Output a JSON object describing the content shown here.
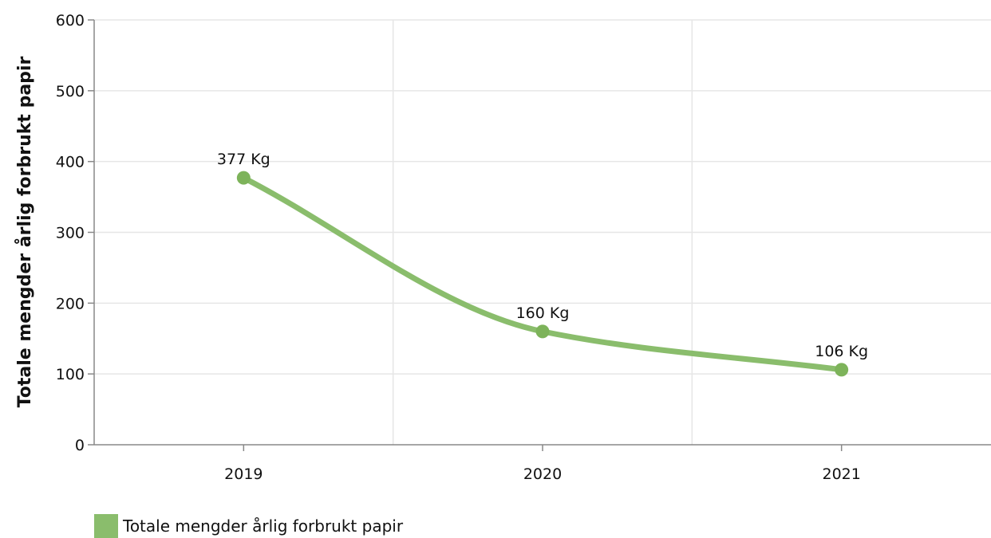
{
  "chart_data": {
    "type": "line",
    "categories": [
      "2019",
      "2020",
      "2021"
    ],
    "series": [
      {
        "name": "Totale mengder årlig forbrukt papir",
        "values": [
          377,
          160,
          106
        ],
        "data_labels": [
          "377 Kg",
          "160 Kg",
          "106 Kg"
        ]
      }
    ],
    "ylabel": "Totale mengder årlig forbrukt papir",
    "xlabel": "",
    "ylim": [
      0,
      600
    ],
    "yticks": [
      0,
      100,
      200,
      300,
      400,
      500,
      600
    ],
    "grid": true,
    "smooth": true,
    "legend_position": "bottom-left",
    "colors": {
      "series": "#8abd6c",
      "marker": "#7db35a",
      "grid": "#e6e6e6",
      "axis": "#888888"
    }
  }
}
